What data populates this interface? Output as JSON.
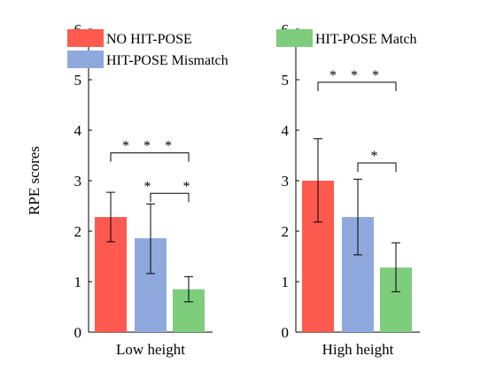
{
  "chart_data": [
    {
      "type": "bar",
      "xlabel": "Low height",
      "ylabel": "RPE scores",
      "ylim": [
        0,
        6
      ],
      "yticks": [
        0,
        1,
        2,
        3,
        4,
        5,
        6
      ],
      "grid": false,
      "series": [
        {
          "name": "NO HIT-POSE",
          "color": "#ff5a4f",
          "value": 2.28,
          "err_low": 1.79,
          "err_high": 2.77
        },
        {
          "name": "HIT-POSE Mismatch",
          "color": "#8fa9df",
          "value": 1.86,
          "err_low": 1.16,
          "err_high": 2.54
        },
        {
          "name": "HIT-POSE Match",
          "color": "#7dcd7d",
          "value": 0.85,
          "err_low": 0.6,
          "err_high": 1.1
        }
      ],
      "significance": [
        {
          "from": 0,
          "to": 2,
          "label": "* * *",
          "level": 3.55
        },
        {
          "from": 1,
          "to": 2,
          "label": "*   *",
          "level": 2.75
        }
      ],
      "legend": {
        "entries": [
          "NO HIT-POSE",
          "HIT-POSE Mismatch"
        ],
        "placement": "top-left"
      }
    },
    {
      "type": "bar",
      "xlabel": "High height",
      "ylabel": "",
      "ylim": [
        0,
        6
      ],
      "yticks": [
        0,
        1,
        2,
        3,
        4,
        5,
        6
      ],
      "grid": false,
      "series": [
        {
          "name": "NO HIT-POSE",
          "color": "#ff5a4f",
          "value": 3.0,
          "err_low": 2.18,
          "err_high": 3.83
        },
        {
          "name": "HIT-POSE Mismatch",
          "color": "#8fa9df",
          "value": 2.28,
          "err_low": 1.53,
          "err_high": 3.03
        },
        {
          "name": "HIT-POSE Match",
          "color": "#7dcd7d",
          "value": 1.28,
          "err_low": 0.8,
          "err_high": 1.77
        }
      ],
      "significance": [
        {
          "from": 0,
          "to": 2,
          "label": "* * *",
          "level": 4.95
        },
        {
          "from": 1,
          "to": 2,
          "label": "*",
          "level": 3.35
        }
      ],
      "legend": {
        "entries": [
          "HIT-POSE Match"
        ],
        "placement": "top-left"
      }
    }
  ]
}
